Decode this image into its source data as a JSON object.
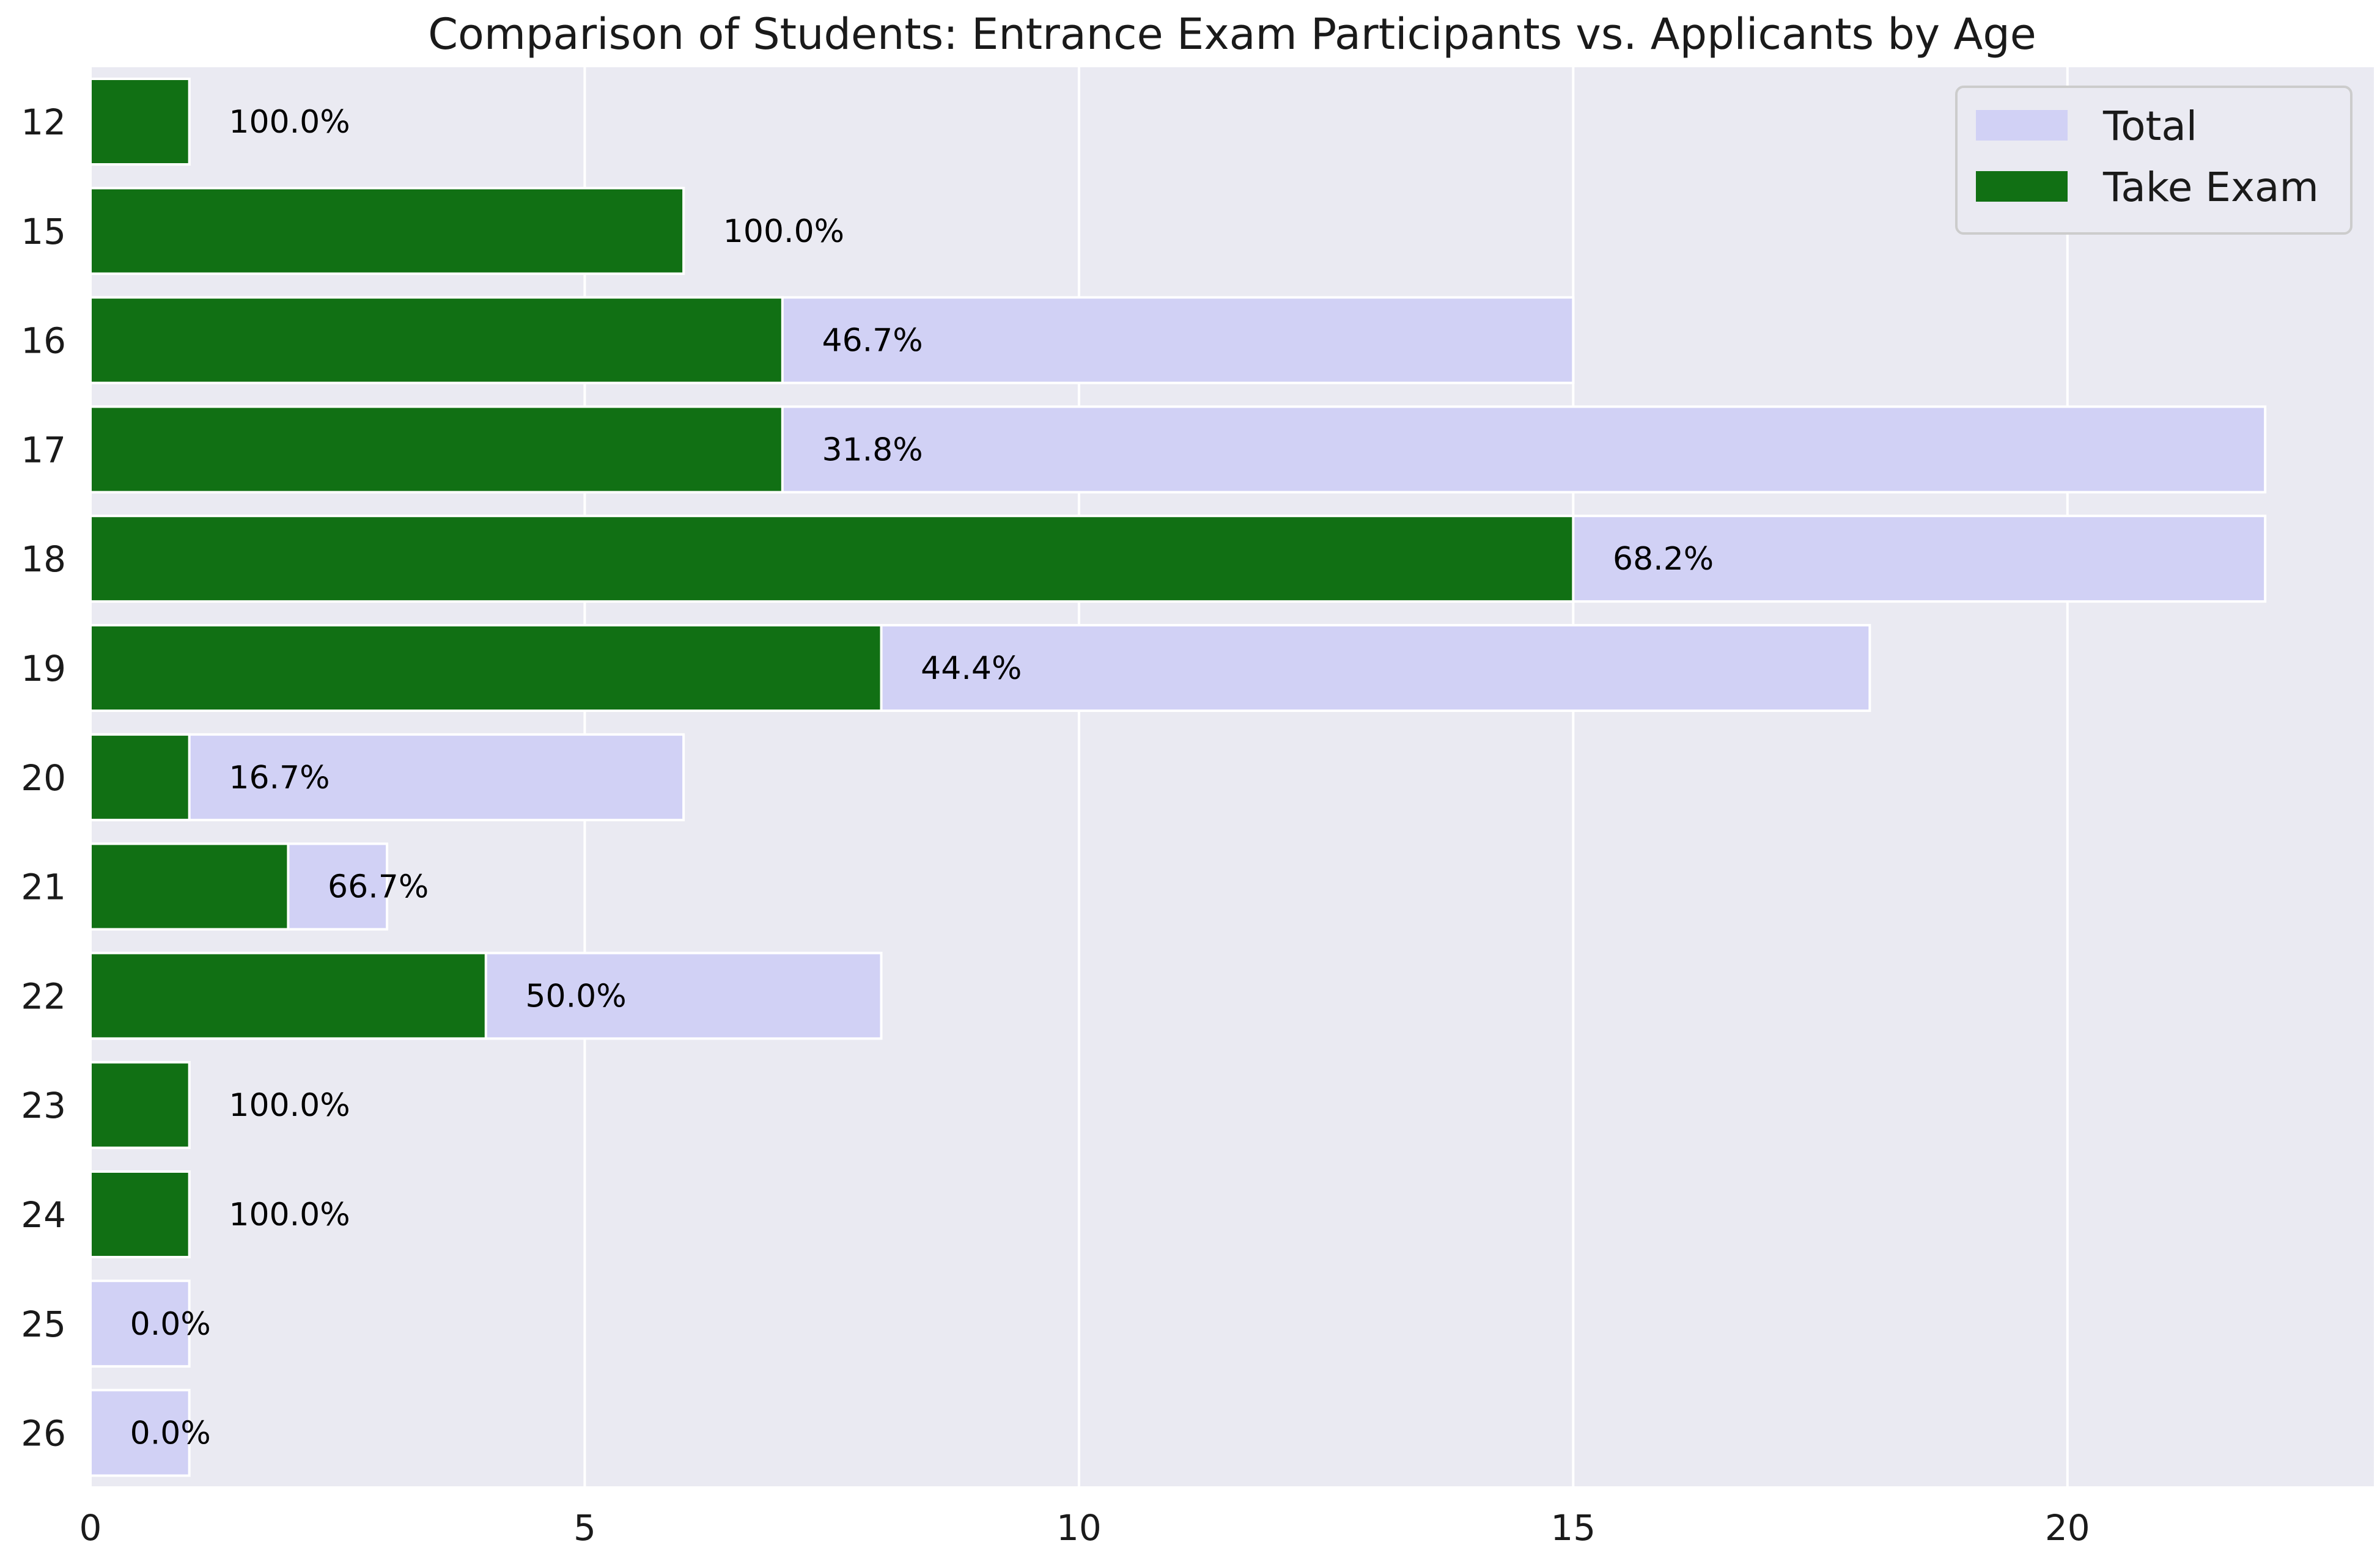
{
  "chart_data": {
    "type": "bar",
    "orientation": "horizontal",
    "stacking": "overlaid",
    "title": "Comparison of Students: Entrance Exam Participants vs. Applicants by Age",
    "xlabel": "",
    "ylabel": "",
    "xlim": [
      0,
      23.1
    ],
    "xticks": [
      0,
      5,
      10,
      15,
      20
    ],
    "grid": true,
    "legend_position": "top-right",
    "categories": [
      "12",
      "15",
      "16",
      "17",
      "18",
      "19",
      "20",
      "21",
      "22",
      "23",
      "24",
      "25",
      "26"
    ],
    "series": [
      {
        "name": "Total",
        "color": "#d1d1f5",
        "values": [
          1,
          6,
          15,
          22,
          22,
          18,
          6,
          3,
          8,
          1,
          1,
          1,
          1
        ]
      },
      {
        "name": "Take Exam",
        "color": "#117014",
        "values": [
          1,
          6,
          7,
          7,
          15,
          8,
          1,
          2,
          4,
          1,
          1,
          0,
          0
        ]
      }
    ],
    "annotations": [
      "100.0%",
      "100.0%",
      "46.7%",
      "31.8%",
      "68.2%",
      "44.4%",
      "16.7%",
      "66.7%",
      "50.0%",
      "100.0%",
      "100.0%",
      "0.0%",
      "0.0%"
    ],
    "colors": {
      "plot_background": "#eaeaf2",
      "grid": "#ffffff"
    }
  }
}
